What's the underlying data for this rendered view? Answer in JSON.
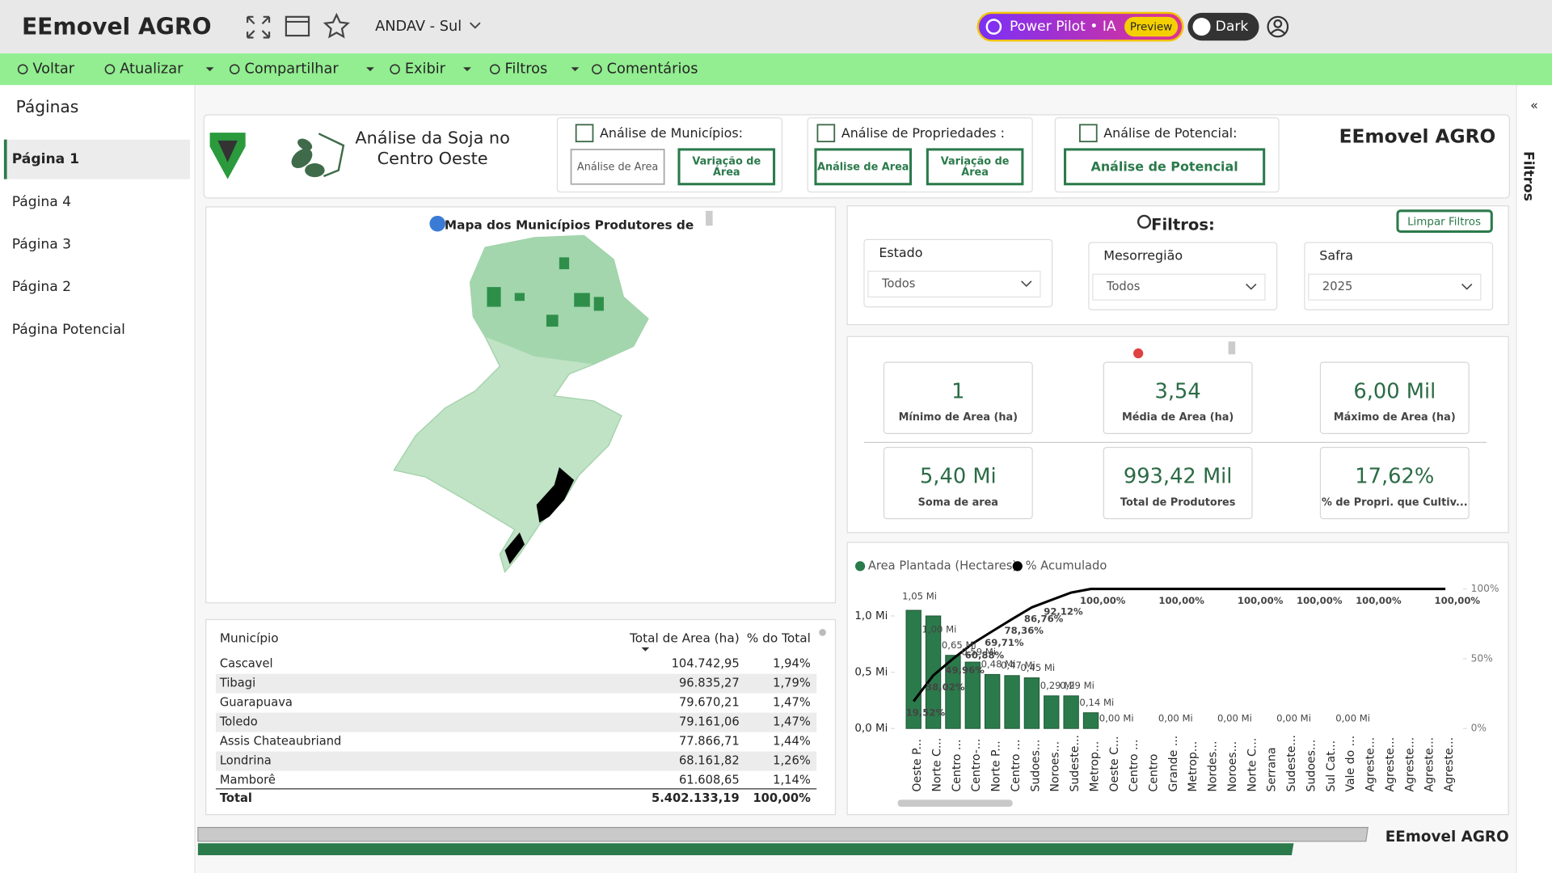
{
  "header": {
    "brand": "EEmovel AGRO",
    "report": "ANDAV - Sul",
    "power_pilot": "Power Pilot • IA",
    "preview": "Preview",
    "dark": "Dark"
  },
  "toolbar": [
    "Voltar",
    "Atualizar",
    "Compartilhar",
    "Exibir",
    "Filtros",
    "Comentários"
  ],
  "sidebar": {
    "title": "Páginas",
    "pages": [
      "Página 1",
      "Página 4",
      "Página 3",
      "Página 2",
      "Página Potencial"
    ],
    "active": 0
  },
  "right_pane": {
    "collapse": "«",
    "title": "Filtros"
  },
  "banner": {
    "title": [
      "Análise da Soja no",
      "Centro Oeste"
    ],
    "municipios": {
      "label": "Análise de Municípios:",
      "buttons": [
        [
          "Análise de Area"
        ],
        [
          "Variação de",
          "Área"
        ]
      ]
    },
    "propriedades": {
      "label": "Análise de Propriedades :",
      "buttons": [
        [
          "Análise de Area"
        ],
        [
          "Variação de",
          "Área"
        ]
      ]
    },
    "potencial": {
      "label": "Análise de Potencial:",
      "buttons": [
        [
          "Análise de Potencial"
        ]
      ]
    },
    "brand": "EEmovel AGRO"
  },
  "map": {
    "title": "Mapa dos Municípios Produtores de"
  },
  "filters": {
    "title": "Filtros:",
    "clear": "Limpar Filtros",
    "fields": [
      {
        "label": "Estado",
        "value": "Todos"
      },
      {
        "label": "Mesorregião",
        "value": "Todos"
      },
      {
        "label": "Safra",
        "value": "2025"
      }
    ]
  },
  "kpis": [
    {
      "value": "1",
      "label": "Mínimo de Area (ha)"
    },
    {
      "value": "3,54",
      "label": "Média de Area (ha)"
    },
    {
      "value": "6,00 Mil",
      "label": "Máximo de Area (ha)"
    },
    {
      "value": "5,40 Mi",
      "label": "Soma de area"
    },
    {
      "value": "993,42 Mil",
      "label": "Total de Produtores"
    },
    {
      "value": "17,62%",
      "label": "% de Propri. que Cultiv..."
    }
  ],
  "table": {
    "columns": [
      "Município",
      "Total de Area (ha)",
      "% do Total"
    ],
    "rows": [
      [
        "Cascavel",
        "104.742,95",
        "1,94%"
      ],
      [
        "Tibagi",
        "96.835,27",
        "1,79%"
      ],
      [
        "Guarapuava",
        "79.670,21",
        "1,47%"
      ],
      [
        "Toledo",
        "79.161,06",
        "1,47%"
      ],
      [
        "Assis Chateaubriand",
        "77.866,71",
        "1,44%"
      ],
      [
        "Londrina",
        "68.161,82",
        "1,26%"
      ],
      [
        "Mamborê",
        "61.608,65",
        "1,14%"
      ]
    ],
    "total": [
      "Total",
      "5.402.133,19",
      "100,00%"
    ]
  },
  "chart_data": {
    "type": "pareto",
    "categories": [
      "Oeste P...",
      "Norte C...",
      "Centro ...",
      "Centro-...",
      "Norte P...",
      "Centro ...",
      "Sudoes...",
      "Noroes...",
      "Sudeste...",
      "Metrop...",
      "Oeste C...",
      "Centro ...",
      "Centro",
      "Grande ...",
      "Metrop...",
      "Nordes...",
      "Noroes...",
      "Norte C...",
      "Serrana",
      "Sudeste...",
      "Sudoes...",
      "Sul Cat...",
      "Vale do ...",
      "Agreste...",
      "Agreste...",
      "Agreste...",
      "Agreste...",
      "Agreste..."
    ],
    "series": [
      {
        "name": "Area Plantada (Hectares)",
        "color": "#2b7a4b",
        "values": [
          1.05,
          1.0,
          0.65,
          0.59,
          0.48,
          0.47,
          0.45,
          0.29,
          0.29,
          0.14,
          0,
          0,
          0,
          0,
          0,
          0,
          0,
          0,
          0,
          0,
          0,
          0,
          0,
          0,
          0,
          0,
          0,
          0
        ],
        "value_labels": [
          "1,05 Mi",
          "1,00 Mi",
          "0,65 Mi",
          "0,59 Mi",
          "0,48 Mi",
          "0,47 Mi",
          "0,45 Mi",
          "0,29 Mi",
          "0,29 Mi",
          "0,14 Mi",
          "0,00 Mi",
          null,
          null,
          "0,00 Mi",
          null,
          null,
          "0,00 Mi",
          null,
          null,
          "0,00 Mi",
          null,
          null,
          "0,00 Mi",
          null,
          null,
          null,
          null,
          null
        ]
      },
      {
        "name": "% Acumulado",
        "color": "#000000",
        "axis": "y2",
        "values": [
          19.52,
          38.02,
          49.96,
          60.88,
          69.71,
          78.36,
          86.76,
          92.12,
          97.4,
          100,
          100,
          100,
          100,
          100,
          100,
          100,
          100,
          100,
          100,
          100,
          100,
          100,
          100,
          100,
          100,
          100,
          100,
          100
        ],
        "value_labels": [
          "19,52%",
          "38,02%",
          "49,96%",
          "60,88%",
          "69,71%",
          "78,36%",
          "86,76%",
          "92,12%",
          null,
          "100,00%",
          null,
          null,
          null,
          "100,00%",
          null,
          null,
          null,
          "100,00%",
          null,
          null,
          "100,00%",
          null,
          null,
          "100,00%",
          null,
          null,
          null,
          "100,00%"
        ]
      }
    ],
    "ylim": [
      0,
      1.24
    ],
    "yticks": [
      {
        "value": 0,
        "label": "0,0 Mi"
      },
      {
        "value": 0.5,
        "label": "0,5 Mi"
      },
      {
        "value": 1.0,
        "label": "1,0 Mi"
      }
    ],
    "y2lim": [
      0,
      100
    ],
    "y2ticks": [
      {
        "value": 0,
        "label": "0%"
      },
      {
        "value": 50,
        "label": "50%"
      },
      {
        "value": 100,
        "label": "100%"
      }
    ],
    "legend": "top-left"
  },
  "footer": {
    "brand": "EEmovel AGRO"
  }
}
